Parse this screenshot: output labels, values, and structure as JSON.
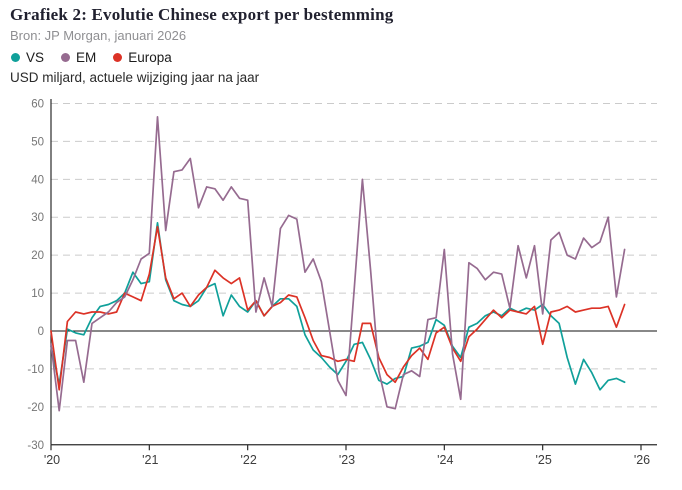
{
  "header": {
    "title": "Grafiek 2: Evolutie Chinese export per bestemming",
    "source": "Bron: JP Morgan, januari 2026",
    "subtitle": "USD miljard, actuele wijziging jaar na jaar"
  },
  "legend": [
    {
      "label": "VS",
      "color": "#10a09a"
    },
    {
      "label": "EM",
      "color": "#966b90"
    },
    {
      "label": "Europa",
      "color": "#dc3226"
    }
  ],
  "chart_data": {
    "type": "line",
    "title": "Grafiek 2: Evolutie Chinese export per bestemming",
    "source": "Bron: JP Morgan, januari 2026",
    "ylabel": "USD miljard, actuele wijziging jaar na jaar",
    "x_start": "2020-01",
    "x_end": "2025-11",
    "x_frequency": "monthly",
    "n_points": 71,
    "x_tick_labels": [
      "'20",
      "'21",
      "'22",
      "'23",
      "'24",
      "'25",
      "'26"
    ],
    "y_ticks": [
      60,
      50,
      40,
      30,
      20,
      10,
      0,
      -10,
      -20,
      -30
    ],
    "ylim": [
      -30,
      60
    ],
    "grid": "dashed-horizontal",
    "zero_line": true,
    "legend_position": "top-left",
    "series": [
      {
        "name": "VS",
        "color": "#10a09a",
        "values": [
          -4,
          -14,
          0.5,
          -0.5,
          -1,
          3.5,
          6.5,
          7,
          8,
          10,
          15.5,
          12.5,
          13,
          28.5,
          13.5,
          8,
          7,
          6.5,
          8,
          11.5,
          12.5,
          4,
          9.5,
          6.5,
          5,
          8,
          4,
          6.5,
          8.5,
          8.5,
          6.5,
          -1,
          -5,
          -7,
          -9.5,
          -11.5,
          -8,
          -3.5,
          -3,
          -7.5,
          -13,
          -14,
          -12.5,
          -12,
          -4.5,
          -4,
          -3,
          3,
          1.5,
          -4,
          -7,
          1,
          2,
          4,
          5,
          4,
          6,
          5,
          6,
          5.5,
          7,
          4,
          2,
          -7,
          -14,
          -7.5,
          -11,
          -15.5,
          -13,
          -12.5,
          -13.5
        ]
      },
      {
        "name": "EM",
        "color": "#966b90",
        "values": [
          -3.5,
          -21,
          -2.5,
          -2.5,
          -13.5,
          2,
          3.5,
          5,
          7.5,
          9,
          13.5,
          19,
          20.5,
          56.5,
          26.5,
          42,
          42.5,
          45.5,
          32.5,
          38,
          37.5,
          34.5,
          38,
          35,
          34.5,
          5,
          14,
          6.5,
          27,
          30.5,
          29.5,
          15.5,
          19,
          13,
          0,
          -13,
          -17,
          11,
          40,
          16,
          -10.5,
          -20,
          -20.5,
          -11.5,
          -10.5,
          -12,
          3,
          3.5,
          21.5,
          -6,
          -18,
          18,
          16.5,
          13.5,
          15.5,
          15,
          6,
          22.5,
          14,
          22.5,
          4.5,
          24,
          26,
          20,
          19,
          24.5,
          22,
          23.5,
          30,
          9,
          21.5
        ]
      },
      {
        "name": "Europa",
        "color": "#dc3226",
        "values": [
          0,
          -15.5,
          2.5,
          5,
          4.5,
          5,
          5,
          4.5,
          5,
          10,
          9,
          8,
          15,
          27.5,
          14,
          8.5,
          10,
          6.5,
          9.5,
          11.5,
          16,
          14,
          12.5,
          14,
          5.5,
          8,
          4,
          6.5,
          7.5,
          9.5,
          9,
          3.5,
          -2.5,
          -6.5,
          -7,
          -8,
          -7.5,
          -8,
          2,
          2,
          -7,
          -11.5,
          -13.5,
          -9.5,
          -6.5,
          -4.5,
          -7.5,
          -0.5,
          1,
          -4.5,
          -8,
          -1.5,
          0.5,
          3,
          5.5,
          3.5,
          5.5,
          5,
          4.5,
          6.5,
          -3.5,
          5,
          5.5,
          6.5,
          5,
          5.5,
          6,
          6,
          6.5,
          1,
          7
        ]
      }
    ]
  }
}
